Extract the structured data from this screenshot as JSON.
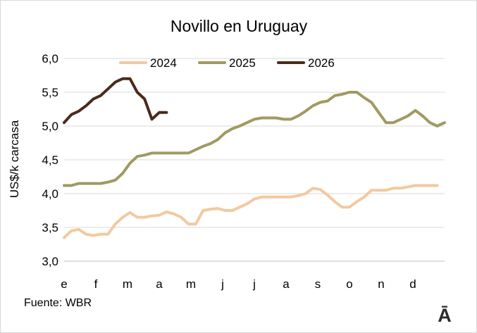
{
  "chart_data": {
    "type": "line",
    "title": "Novillo en Uruguay",
    "ylabel": "US$/k carcasa",
    "xlabel": "",
    "x_tick_labels": [
      "e",
      "f",
      "m",
      "a",
      "m",
      "j",
      "j",
      "a",
      "s",
      "o",
      "n",
      "d"
    ],
    "y_tick_labels": [
      "3,0",
      "3,5",
      "4,0",
      "4,5",
      "5,0",
      "5,5",
      "6,0"
    ],
    "ylim": [
      3.0,
      6.0
    ],
    "y_ticks": [
      3.0,
      3.5,
      4.0,
      4.5,
      5.0,
      5.5,
      6.0
    ],
    "x_unit": "week of year",
    "xlim": [
      1,
      53
    ],
    "grid": "horizontal",
    "legend_position": "top",
    "series": [
      {
        "name": "2024",
        "color": "#f2c9a0",
        "x": [
          1,
          2,
          3,
          4,
          5,
          6,
          7,
          8,
          9,
          10,
          11,
          12,
          13,
          14,
          15,
          16,
          17,
          18,
          19,
          20,
          21,
          22,
          23,
          24,
          25,
          26,
          27,
          28,
          29,
          30,
          31,
          32,
          33,
          34,
          35,
          36,
          37,
          38,
          39,
          40,
          41,
          42,
          43,
          44,
          45,
          46,
          47,
          48,
          49,
          50,
          51,
          52
        ],
        "values": [
          3.35,
          3.45,
          3.47,
          3.4,
          3.38,
          3.4,
          3.4,
          3.55,
          3.65,
          3.72,
          3.65,
          3.65,
          3.67,
          3.68,
          3.73,
          3.7,
          3.65,
          3.55,
          3.55,
          3.75,
          3.77,
          3.78,
          3.75,
          3.75,
          3.8,
          3.85,
          3.92,
          3.95,
          3.95,
          3.95,
          3.95,
          3.95,
          3.97,
          4.0,
          4.08,
          4.06,
          3.98,
          3.88,
          3.8,
          3.8,
          3.88,
          3.95,
          4.05,
          4.05,
          4.05,
          4.08,
          4.08,
          4.1,
          4.12,
          4.12,
          4.12,
          4.12
        ]
      },
      {
        "name": "2025",
        "color": "#a09a62",
        "x": [
          1,
          2,
          3,
          4,
          5,
          6,
          7,
          8,
          9,
          10,
          11,
          12,
          13,
          14,
          15,
          16,
          17,
          18,
          19,
          20,
          21,
          22,
          23,
          24,
          25,
          26,
          27,
          28,
          29,
          30,
          31,
          32,
          33,
          34,
          35,
          36,
          37,
          38,
          39,
          40,
          41,
          42,
          43,
          44,
          45,
          46,
          47,
          48,
          49,
          50,
          51,
          52,
          53
        ],
        "values": [
          4.12,
          4.12,
          4.15,
          4.15,
          4.15,
          4.15,
          4.17,
          4.2,
          4.3,
          4.45,
          4.55,
          4.57,
          4.6,
          4.6,
          4.6,
          4.6,
          4.6,
          4.6,
          4.65,
          4.7,
          4.74,
          4.8,
          4.9,
          4.96,
          5.0,
          5.05,
          5.1,
          5.12,
          5.12,
          5.12,
          5.1,
          5.1,
          5.15,
          5.22,
          5.3,
          5.35,
          5.37,
          5.45,
          5.47,
          5.5,
          5.5,
          5.42,
          5.35,
          5.2,
          5.05,
          5.05,
          5.1,
          5.15,
          5.23,
          5.15,
          5.05,
          5.0,
          5.05
        ]
      },
      {
        "name": "2026",
        "color": "#4a2b1c",
        "x": [
          1,
          2,
          3,
          4,
          5,
          6,
          7,
          8,
          9,
          10,
          11,
          12,
          13,
          14,
          15
        ],
        "values": [
          5.05,
          5.17,
          5.22,
          5.3,
          5.4,
          5.45,
          5.55,
          5.65,
          5.7,
          5.7,
          5.5,
          5.4,
          5.1,
          5.2,
          5.2
        ]
      }
    ]
  },
  "source": "Fuente: WBR",
  "logo_text": "Ā"
}
